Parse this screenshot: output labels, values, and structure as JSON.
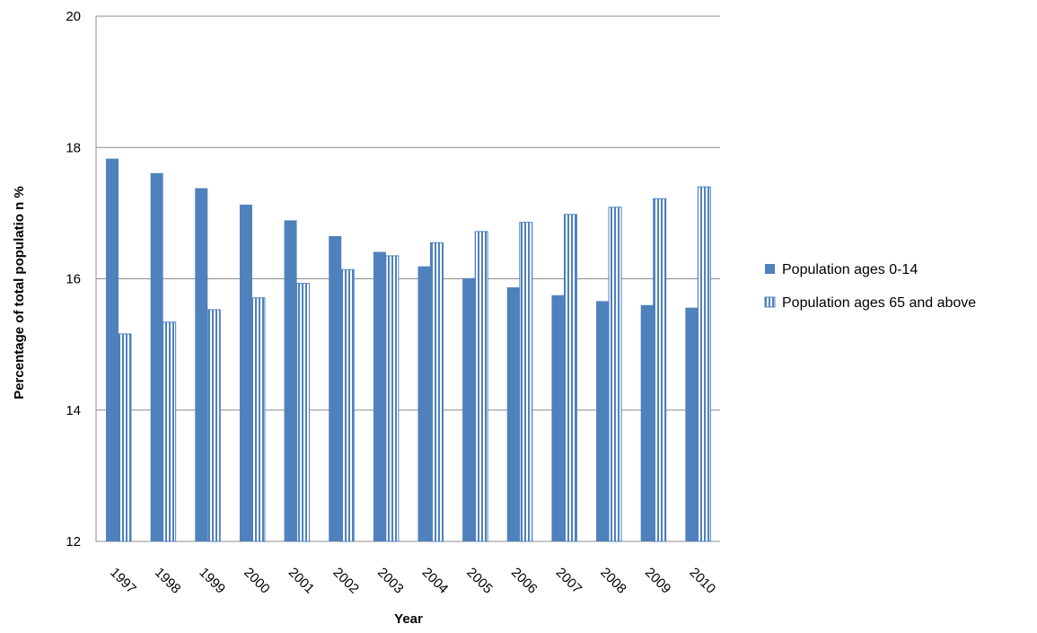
{
  "chart_data": {
    "type": "bar",
    "title": "",
    "xlabel": "Year",
    "ylabel": "Percentage of total populatio n %",
    "ylim": [
      12,
      20
    ],
    "yticks": [
      12,
      14,
      16,
      18,
      20
    ],
    "grid": "horizontal",
    "legend_position": "right",
    "categories": [
      "1997",
      "1998",
      "1999",
      "2000",
      "2001",
      "2002",
      "2003",
      "2004",
      "2005",
      "2006",
      "2007",
      "2008",
      "2009",
      "2010"
    ],
    "series": [
      {
        "name": "Population ages 0-14",
        "color": "#4f81bd",
        "pattern": "solid",
        "values": [
          17.83,
          17.61,
          17.38,
          17.13,
          16.89,
          16.65,
          16.41,
          16.19,
          16.01,
          15.87,
          15.75,
          15.66,
          15.6,
          15.56
        ]
      },
      {
        "name": "Population ages 65 and above",
        "color": "#4f81bd",
        "pattern": "vertical-stripes",
        "values": [
          15.16,
          15.34,
          15.53,
          15.71,
          15.93,
          16.14,
          16.35,
          16.55,
          16.72,
          16.86,
          16.98,
          17.09,
          17.22,
          17.4
        ]
      }
    ]
  }
}
